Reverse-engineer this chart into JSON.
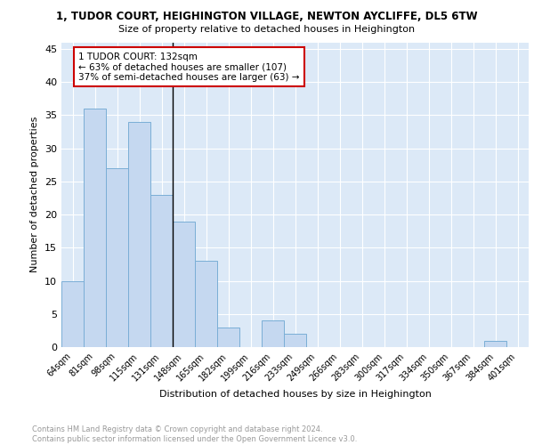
{
  "title": "1, TUDOR COURT, HEIGHINGTON VILLAGE, NEWTON AYCLIFFE, DL5 6TW",
  "subtitle": "Size of property relative to detached houses in Heighington",
  "xlabel": "Distribution of detached houses by size in Heighington",
  "ylabel": "Number of detached properties",
  "categories": [
    "64sqm",
    "81sqm",
    "98sqm",
    "115sqm",
    "131sqm",
    "148sqm",
    "165sqm",
    "182sqm",
    "199sqm",
    "216sqm",
    "233sqm",
    "249sqm",
    "266sqm",
    "283sqm",
    "300sqm",
    "317sqm",
    "334sqm",
    "350sqm",
    "367sqm",
    "384sqm",
    "401sqm"
  ],
  "values": [
    10,
    36,
    27,
    34,
    23,
    19,
    13,
    3,
    0,
    4,
    2,
    0,
    0,
    0,
    0,
    0,
    0,
    0,
    0,
    1,
    0
  ],
  "bar_color": "#c5d8f0",
  "bar_edge_color": "#7aaed6",
  "vline_index": 4,
  "vline_color": "#000000",
  "annotation_text": "1 TUDOR COURT: 132sqm\n← 63% of detached houses are smaller (107)\n37% of semi-detached houses are larger (63) →",
  "annotation_box_color": "#ffffff",
  "annotation_box_edge": "#cc0000",
  "ylim": [
    0,
    46
  ],
  "yticks": [
    0,
    5,
    10,
    15,
    20,
    25,
    30,
    35,
    40,
    45
  ],
  "bg_color": "#dce9f7",
  "grid_color": "#ffffff",
  "footer": "Contains HM Land Registry data © Crown copyright and database right 2024.\nContains public sector information licensed under the Open Government Licence v3.0."
}
